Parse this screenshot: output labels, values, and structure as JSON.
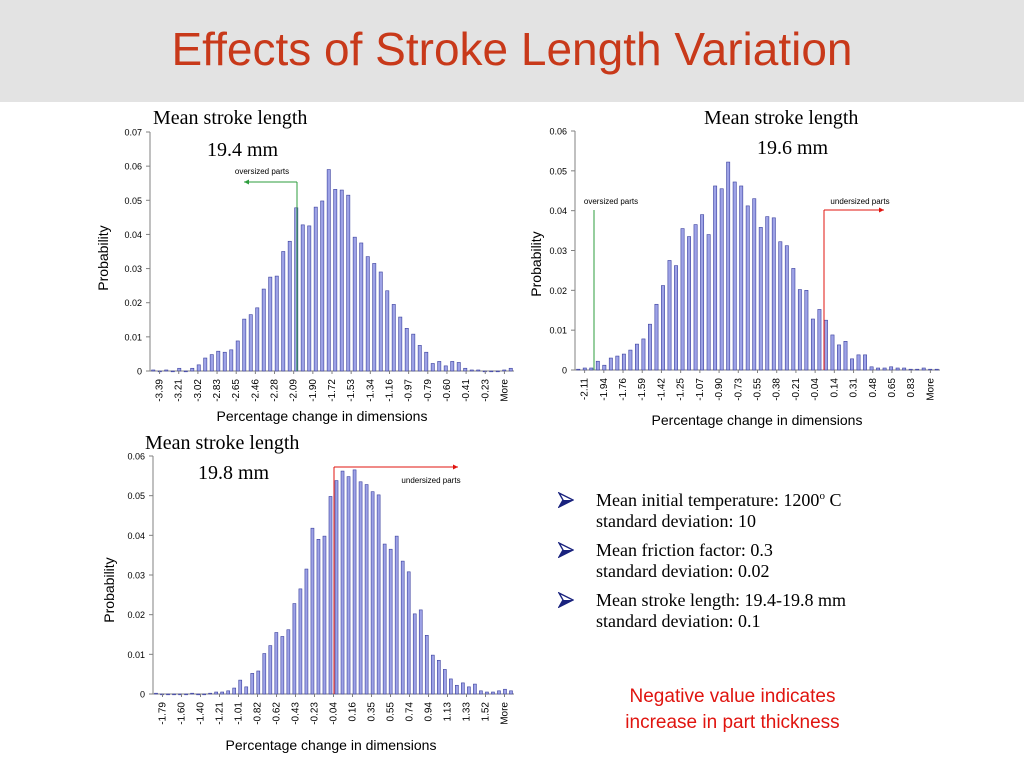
{
  "slide": {
    "title": "Effects of Stroke Length Variation"
  },
  "charts_text": [
    {
      "label_line1": "Mean stroke length",
      "label_line2": "19.4 mm"
    },
    {
      "label_line1": "Mean stroke length",
      "label_line2": "19.6 mm"
    },
    {
      "label_line1": "Mean stroke length",
      "label_line2": "19.8 mm"
    }
  ],
  "bullets": [
    {
      "line1_before_sup": "Mean initial temperature: 1200",
      "sup": "o",
      "line1_after_sup": " C",
      "line2": "standard deviation: 10"
    },
    {
      "line1_before_sup": "Mean friction factor: 0.3",
      "sup": "",
      "line1_after_sup": "",
      "line2": "standard deviation: 0.02"
    },
    {
      "line1_before_sup": "Mean stroke length: 19.4-19.8 mm",
      "sup": "",
      "line1_after_sup": "",
      "line2": "standard deviation: 0.1"
    }
  ],
  "note": {
    "line1": "Negative value indicates",
    "line2": "increase in part thickness"
  },
  "colors": {
    "title": "#c8391a",
    "bar_fill": "#9da2e6",
    "bar_stroke": "#3a3f9e",
    "oversized_line": "#2e9e3e",
    "undersized_line": "#e0140f",
    "note": "#e0140f",
    "bullet_icon": "#1a237e"
  },
  "chart_data": [
    {
      "type": "bar",
      "title": "Mean stroke length 19.4 mm",
      "xlabel": "Percentage change in dimensions",
      "ylabel": "Probability",
      "ylim": [
        0,
        0.07
      ],
      "yticks": [
        "0",
        "0.01",
        "0.02",
        "0.03",
        "0.04",
        "0.05",
        "0.06",
        "0.07"
      ],
      "tick_labels": [
        "-3.39",
        "-3.21",
        "-3.02",
        "-2.83",
        "-2.65",
        "-2.46",
        "-2.28",
        "-2.09",
        "-1.90",
        "-1.72",
        "-1.53",
        "-1.34",
        "-1.16",
        "-0.97",
        "-0.79",
        "-0.60",
        "-0.41",
        "-0.23",
        "More"
      ],
      "values": [
        0.0003,
        0,
        0.0003,
        0,
        0.0008,
        0,
        0.0008,
        0.0018,
        0.0038,
        0.0048,
        0.0058,
        0.0055,
        0.0062,
        0.0088,
        0.0152,
        0.0165,
        0.0185,
        0.024,
        0.0275,
        0.0278,
        0.035,
        0.038,
        0.0478,
        0.0428,
        0.0425,
        0.048,
        0.0498,
        0.059,
        0.0532,
        0.053,
        0.0515,
        0.0392,
        0.0375,
        0.0335,
        0.0315,
        0.029,
        0.0235,
        0.0195,
        0.0158,
        0.0125,
        0.0108,
        0.0075,
        0.0055,
        0.0022,
        0.0028,
        0.0015,
        0.0028,
        0.0025,
        0.0008,
        0.0003,
        0.0003,
        0,
        0,
        0,
        0.0003,
        0.0008
      ],
      "annotations": [
        {
          "text": "oversized parts",
          "at": "-2.09",
          "color": "green"
        }
      ],
      "grid": false,
      "legend": "none"
    },
    {
      "type": "bar",
      "title": "Mean stroke length 19.6 mm",
      "xlabel": "Percentage change in dimensions",
      "ylabel": "Probability",
      "ylim": [
        0,
        0.06
      ],
      "yticks": [
        "0",
        "0.01",
        "0.02",
        "0.03",
        "0.04",
        "0.05",
        "0.06"
      ],
      "tick_labels": [
        "-2.11",
        "-1.94",
        "-1.76",
        "-1.59",
        "-1.42",
        "-1.25",
        "-1.07",
        "-0.90",
        "-0.73",
        "-0.55",
        "-0.38",
        "-0.21",
        "-0.04",
        "0.14",
        "0.31",
        "0.48",
        "0.65",
        "0.83",
        "More"
      ],
      "values": [
        0.0002,
        0.0005,
        0.0005,
        0.0022,
        0.0012,
        0.003,
        0.0035,
        0.004,
        0.005,
        0.0065,
        0.0078,
        0.0115,
        0.0165,
        0.0212,
        0.0275,
        0.0262,
        0.0355,
        0.0335,
        0.0365,
        0.039,
        0.034,
        0.0462,
        0.0455,
        0.0522,
        0.0472,
        0.0462,
        0.0412,
        0.043,
        0.0358,
        0.0385,
        0.0382,
        0.0322,
        0.0312,
        0.0255,
        0.0202,
        0.02,
        0.0128,
        0.0152,
        0.0125,
        0.0088,
        0.0063,
        0.0072,
        0.0028,
        0.0038,
        0.0038,
        0.0008,
        0.0005,
        0.0005,
        0.0008,
        0.0005,
        0.0005,
        0.0002,
        0.0002,
        0.0005,
        0.0002,
        0.0002
      ],
      "annotations": [
        {
          "text": "oversized parts",
          "at": "-2.11",
          "color": "green"
        },
        {
          "text": "undersized parts",
          "at": "-0.04",
          "color": "red"
        }
      ],
      "grid": false,
      "legend": "none"
    },
    {
      "type": "bar",
      "title": "Mean stroke length 19.8 mm",
      "xlabel": "Percentage change in dimensions",
      "ylabel": "Probability",
      "ylim": [
        0,
        0.06
      ],
      "yticks": [
        "0",
        "0.01",
        "0.02",
        "0.03",
        "0.04",
        "0.05",
        "0.06"
      ],
      "tick_labels": [
        "-1.79",
        "-1.60",
        "-1.40",
        "-1.21",
        "-1.01",
        "-0.82",
        "-0.62",
        "-0.43",
        "-0.23",
        "-0.04",
        "0.16",
        "0.35",
        "0.55",
        "0.74",
        "0.94",
        "1.13",
        "1.33",
        "1.52",
        "More"
      ],
      "values": [
        0.0002,
        0,
        0,
        0,
        0,
        0,
        0.0002,
        0,
        0,
        0.0002,
        0.0005,
        0.0005,
        0.0008,
        0.0015,
        0.0035,
        0.0018,
        0.0052,
        0.0058,
        0.0102,
        0.0122,
        0.0155,
        0.0145,
        0.0162,
        0.0228,
        0.0265,
        0.0315,
        0.0418,
        0.039,
        0.0398,
        0.0498,
        0.0538,
        0.0562,
        0.0548,
        0.0565,
        0.0535,
        0.0528,
        0.051,
        0.0502,
        0.0378,
        0.0365,
        0.0398,
        0.0335,
        0.0308,
        0.0202,
        0.0212,
        0.0148,
        0.0098,
        0.0085,
        0.0062,
        0.0038,
        0.0022,
        0.0028,
        0.0018,
        0.0025,
        0.0008,
        0.0005,
        0.0005,
        0.0008,
        0.0012,
        0.0008
      ],
      "annotations": [
        {
          "text": "undersized parts",
          "at": "0.16",
          "color": "red"
        }
      ],
      "grid": false,
      "legend": "none"
    }
  ]
}
